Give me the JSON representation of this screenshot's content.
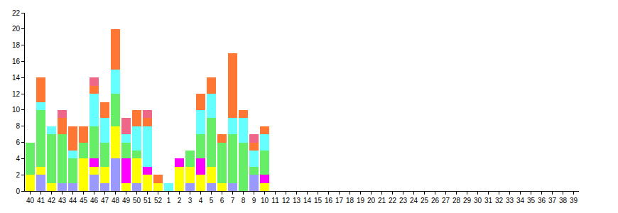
{
  "chart_data": {
    "type": "bar",
    "stacked": true,
    "grid": false,
    "categories": [
      "40",
      "41",
      "42",
      "43",
      "44",
      "45",
      "46",
      "47",
      "48",
      "49",
      "50",
      "51",
      "52",
      "1",
      "2",
      "3",
      "4",
      "5",
      "6",
      "7",
      "8",
      "9",
      "10",
      "11",
      "12",
      "13",
      "14",
      "15",
      "16",
      "17",
      "18",
      "19",
      "20",
      "21",
      "22",
      "23",
      "24",
      "25",
      "26",
      "27",
      "28",
      "29",
      "30",
      "31",
      "32",
      "33",
      "34",
      "35",
      "36",
      "37",
      "38",
      "39"
    ],
    "series": [
      {
        "color": "#9999ff",
        "values": [
          0,
          2,
          0,
          1,
          1,
          0,
          2,
          1,
          4,
          0,
          1,
          0,
          0,
          0,
          0,
          1,
          0,
          1,
          0,
          1,
          0,
          2,
          0,
          0,
          0,
          0,
          0,
          0,
          0,
          0,
          0,
          0,
          0,
          0,
          0,
          0,
          0,
          0,
          0,
          0,
          0,
          0,
          0,
          0,
          0,
          0,
          0,
          0,
          0,
          0,
          0,
          0
        ]
      },
      {
        "color": "#ffff00",
        "values": [
          2,
          1,
          1,
          0,
          0,
          4,
          1,
          2,
          4,
          1,
          3,
          2,
          1,
          0,
          3,
          2,
          2,
          2,
          1,
          0,
          0,
          0,
          1,
          0,
          0,
          0,
          0,
          0,
          0,
          0,
          0,
          0,
          0,
          0,
          0,
          0,
          0,
          0,
          0,
          0,
          0,
          0,
          0,
          0,
          0,
          0,
          0,
          0,
          0,
          0,
          0,
          0
        ]
      },
      {
        "color": "#ff00ff",
        "values": [
          0,
          0,
          0,
          0,
          0,
          0,
          1,
          0,
          0,
          3,
          0,
          1,
          0,
          0,
          1,
          0,
          2,
          0,
          0,
          0,
          0,
          0,
          1,
          0,
          0,
          0,
          0,
          0,
          0,
          0,
          0,
          0,
          0,
          0,
          0,
          0,
          0,
          0,
          0,
          0,
          0,
          0,
          0,
          0,
          0,
          0,
          0,
          0,
          0,
          0,
          0,
          0
        ]
      },
      {
        "color": "#66ee66",
        "values": [
          4,
          7,
          6,
          6,
          3,
          2,
          4,
          3,
          4,
          2,
          1,
          0,
          0,
          0,
          0,
          2,
          3,
          6,
          5,
          6,
          6,
          1,
          3,
          0,
          0,
          0,
          0,
          0,
          0,
          0,
          0,
          0,
          0,
          0,
          0,
          0,
          0,
          0,
          0,
          0,
          0,
          0,
          0,
          0,
          0,
          0,
          0,
          0,
          0,
          0,
          0,
          0
        ]
      },
      {
        "color": "#66ffff",
        "values": [
          0,
          1,
          1,
          0,
          1,
          0,
          4,
          3,
          3,
          1,
          3,
          5,
          0,
          1,
          0,
          0,
          3,
          3,
          0,
          2,
          3,
          2,
          2,
          0,
          0,
          0,
          0,
          0,
          0,
          0,
          0,
          0,
          0,
          0,
          0,
          0,
          0,
          0,
          0,
          0,
          0,
          0,
          0,
          0,
          0,
          0,
          0,
          0,
          0,
          0,
          0,
          0
        ]
      },
      {
        "color": "#ff7733",
        "values": [
          0,
          3,
          0,
          2,
          3,
          2,
          1,
          2,
          5,
          0,
          2,
          1,
          1,
          0,
          0,
          0,
          2,
          2,
          1,
          8,
          1,
          1,
          1,
          0,
          0,
          0,
          0,
          0,
          0,
          0,
          0,
          0,
          0,
          0,
          0,
          0,
          0,
          0,
          0,
          0,
          0,
          0,
          0,
          0,
          0,
          0,
          0,
          0,
          0,
          0,
          0,
          0
        ]
      },
      {
        "color": "#ee6688",
        "values": [
          0,
          0,
          0,
          1,
          0,
          0,
          1,
          0,
          0,
          2,
          0,
          1,
          0,
          0,
          0,
          0,
          0,
          0,
          0,
          0,
          0,
          1,
          0,
          0,
          0,
          0,
          0,
          0,
          0,
          0,
          0,
          0,
          0,
          0,
          0,
          0,
          0,
          0,
          0,
          0,
          0,
          0,
          0,
          0,
          0,
          0,
          0,
          0,
          0,
          0,
          0,
          0
        ]
      }
    ],
    "ylim": [
      0,
      22
    ],
    "yticks": [
      0,
      2,
      4,
      6,
      8,
      10,
      12,
      14,
      16,
      18,
      20,
      22
    ]
  }
}
